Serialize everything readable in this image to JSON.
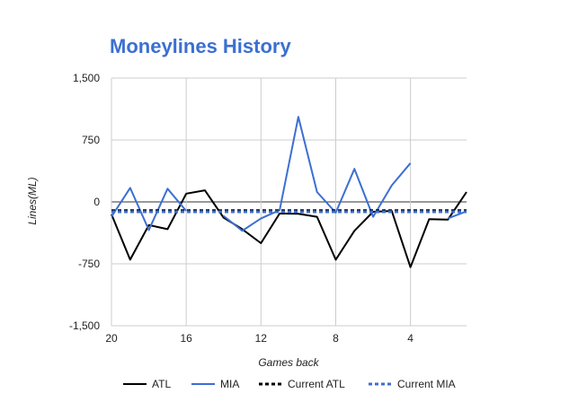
{
  "chart_data": {
    "type": "line",
    "title": "Moneylines History",
    "xlabel": "Games back",
    "ylabel": "Lines(ML)",
    "xlim": [
      20,
      1
    ],
    "ylim": [
      -1500,
      1500
    ],
    "x_ticks": [
      "20",
      "16",
      "12",
      "8",
      "4"
    ],
    "x_tick_values": [
      20,
      16,
      12,
      8,
      4
    ],
    "y_ticks": [
      "1,500",
      "750",
      "0",
      "-750",
      "-1,500"
    ],
    "y_tick_values": [
      1500,
      750,
      0,
      -750,
      -1500
    ],
    "grid": true,
    "legend_position": "bottom",
    "x": [
      20,
      19,
      18,
      17,
      16,
      15,
      14,
      13,
      12,
      11,
      10,
      9,
      8,
      7,
      6,
      5,
      4,
      3,
      2,
      1
    ],
    "series": [
      {
        "name": "ATL",
        "color": "#000000",
        "style": "solid",
        "values": [
          -150,
          -700,
          -280,
          -330,
          100,
          140,
          -190,
          -330,
          -500,
          -140,
          -145,
          -180,
          -700,
          -350,
          -120,
          -110,
          -790,
          -210,
          -215,
          120
        ]
      },
      {
        "name": "MIA",
        "color": "#3c6fd1",
        "style": "solid",
        "values": [
          -180,
          170,
          -340,
          160,
          -110,
          null,
          -170,
          -350,
          -200,
          -100,
          1030,
          120,
          -130,
          400,
          -180,
          200,
          470,
          null,
          -200,
          -115
        ]
      },
      {
        "name": "Current ATL",
        "color": "#000000",
        "style": "dashed",
        "values": [
          -105,
          -105,
          -105,
          -105,
          -105,
          -105,
          -105,
          -105,
          -105,
          -105,
          -105,
          -105,
          -105,
          -105,
          -105,
          -105,
          -105,
          -105,
          -105,
          -105
        ]
      },
      {
        "name": "Current MIA",
        "color": "#3c6fd1",
        "style": "dashed",
        "values": [
          -120,
          -120,
          -120,
          -120,
          -120,
          -120,
          -120,
          -120,
          -120,
          -120,
          -120,
          -120,
          -120,
          -120,
          -120,
          -120,
          -120,
          -120,
          -120,
          -120
        ]
      }
    ]
  },
  "colors": {
    "title": "#3c6fd1",
    "grid": "#cccccc",
    "zero_line": "#333333"
  }
}
